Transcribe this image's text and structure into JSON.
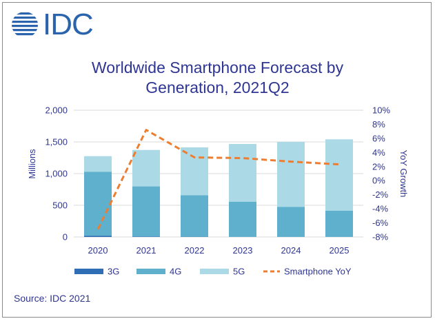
{
  "logo": {
    "text": "IDC",
    "icon": "idc-globe-icon",
    "color": "#2a64ad"
  },
  "title_line1": "Worldwide Smartphone Forecast by",
  "title_line2": "Generation, 2021Q2",
  "source": "Source: IDC 2021",
  "chart_data": {
    "type": "bar",
    "stacked": true,
    "categories": [
      "2020",
      "2021",
      "2022",
      "2023",
      "2024",
      "2025"
    ],
    "series": [
      {
        "name": "3G",
        "values": [
          20,
          8,
          4,
          2,
          1,
          1
        ],
        "color": "#2f6db5",
        "axis": "left"
      },
      {
        "name": "4G",
        "values": [
          1010,
          790,
          655,
          555,
          475,
          415
        ],
        "color": "#5fb0cc",
        "axis": "left"
      },
      {
        "name": "5G",
        "values": [
          245,
          575,
          755,
          910,
          1025,
          1125
        ],
        "color": "#acd9e6",
        "axis": "left"
      },
      {
        "name": "Smartphone YoY",
        "type": "line",
        "style": "dashed",
        "values": [
          -6.9,
          7.2,
          3.3,
          3.2,
          2.7,
          2.3
        ],
        "color": "#ed7d31",
        "axis": "right"
      }
    ],
    "ylabel": "Millions",
    "y2label": "YoY Growth",
    "ylim": [
      0,
      2000
    ],
    "yticks": [
      "0",
      "500",
      "1,000",
      "1,500",
      "2,000"
    ],
    "y2lim": [
      -8,
      10
    ],
    "y2ticks": [
      "-8%",
      "-6%",
      "-4%",
      "-2%",
      "0%",
      "2%",
      "4%",
      "6%",
      "8%",
      "10%"
    ],
    "grid": true,
    "legend": "bottom"
  }
}
